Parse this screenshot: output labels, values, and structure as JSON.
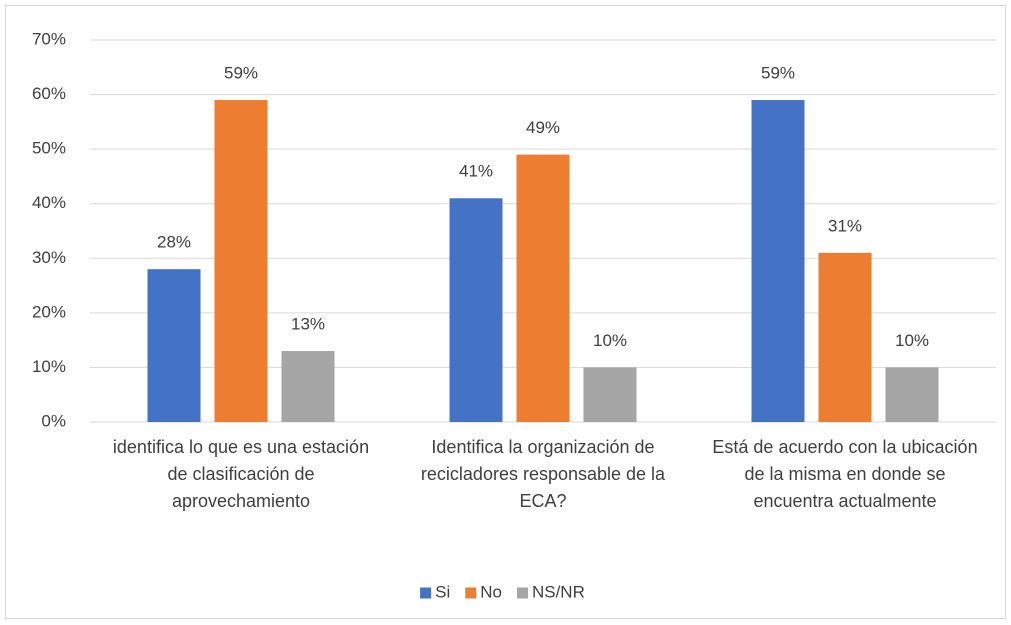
{
  "chart_data": {
    "type": "bar",
    "categories": [
      "identifica lo que es una estación de clasificación de aprovechamiento",
      "Identifica la organización de recicladores responsable de la ECA?",
      "Está de acuerdo con la ubicación de la misma en donde se encuentra actualmente"
    ],
    "series": [
      {
        "name": "Si",
        "color": "#4472c4",
        "values": [
          28,
          41,
          59
        ],
        "value_labels": [
          "28%",
          "41%",
          "59%"
        ]
      },
      {
        "name": "No",
        "color": "#ed7d31",
        "values": [
          59,
          49,
          31
        ],
        "value_labels": [
          "59%",
          "49%",
          "31%"
        ]
      },
      {
        "name": "NS/NR",
        "color": "#a5a5a5",
        "values": [
          13,
          10,
          10
        ],
        "value_labels": [
          "13%",
          "10%",
          "10%"
        ]
      }
    ],
    "ylim": [
      0,
      70
    ],
    "yticks": [
      {
        "value": 0,
        "label": "0%"
      },
      {
        "value": 10,
        "label": "10%"
      },
      {
        "value": 20,
        "label": "20%"
      },
      {
        "value": 30,
        "label": "30%"
      },
      {
        "value": 40,
        "label": "40%"
      },
      {
        "value": 50,
        "label": "50%"
      },
      {
        "value": 60,
        "label": "60%"
      },
      {
        "value": 70,
        "label": "70%"
      }
    ],
    "grid": true,
    "legend": "bottom"
  }
}
